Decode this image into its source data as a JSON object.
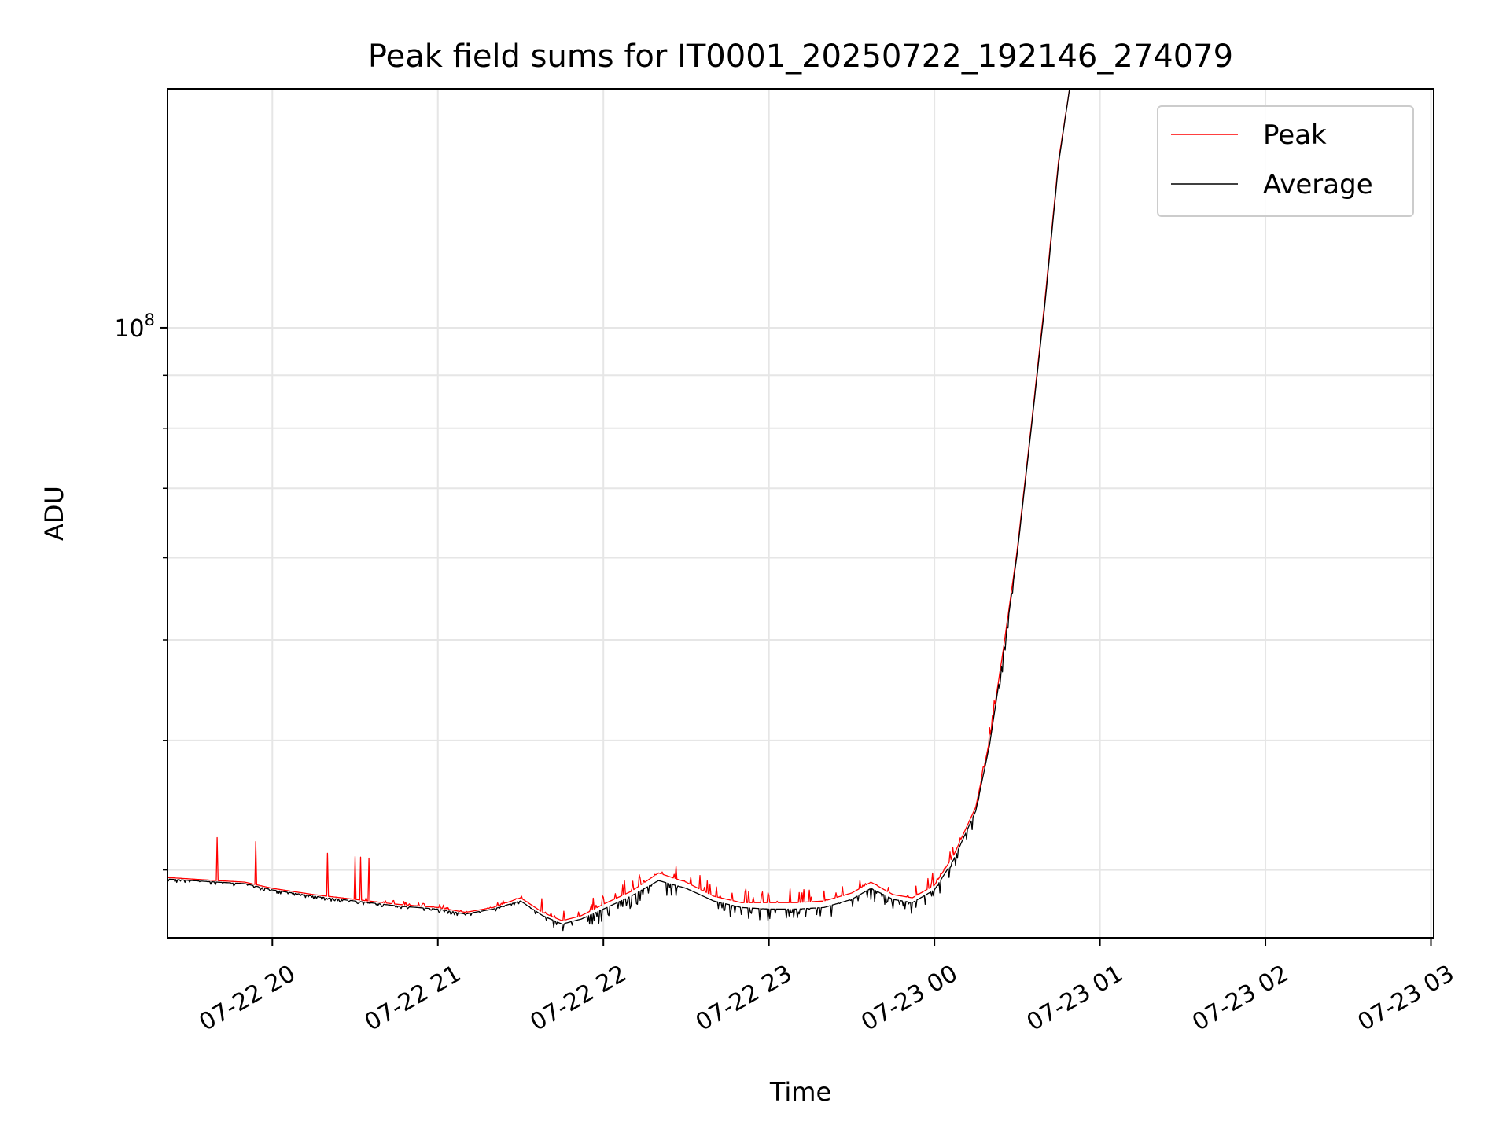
{
  "chart_data": {
    "type": "line",
    "title": "Peak field sums for IT0001_20250722_192146_274079",
    "xlabel": "Time",
    "ylabel": "ADU",
    "yscale": "log",
    "grid": true,
    "legend_position": "top-right",
    "xlim": [
      "2025-07-22 19:22",
      "2025-07-23 03:01"
    ],
    "ylim": [
      25800000,
      170000000
    ],
    "x_ticks": [
      "2025-07-22 20:00",
      "2025-07-22 21:00",
      "2025-07-22 22:00",
      "2025-07-22 23:00",
      "2025-07-23 00:00",
      "2025-07-23 01:00",
      "2025-07-23 02:00",
      "2025-07-23 03:00"
    ],
    "x_tick_labels": [
      "07-22 20",
      "07-22 21",
      "07-22 22",
      "07-22 23",
      "07-23 00",
      "07-23 01",
      "07-23 02",
      "07-23 03"
    ],
    "y_major_ticks": [
      100000000
    ],
    "y_major_tick_labels": [
      "10",
      "8"
    ],
    "y_minor_ticks": [
      30000000,
      40000000,
      50000000,
      60000000,
      70000000,
      80000000,
      90000000,
      200000000
    ],
    "series": [
      {
        "name": "Peak",
        "color": "#ff0000",
        "x": [
          "2025-07-22 19:22",
          "2025-07-22 19:40",
          "2025-07-22 19:50",
          "2025-07-22 20:00",
          "2025-07-22 20:15",
          "2025-07-22 20:30",
          "2025-07-22 20:45",
          "2025-07-22 21:00",
          "2025-07-22 21:10",
          "2025-07-22 21:20",
          "2025-07-22 21:30",
          "2025-07-22 21:38",
          "2025-07-22 21:45",
          "2025-07-22 21:52",
          "2025-07-22 22:00",
          "2025-07-22 22:10",
          "2025-07-22 22:20",
          "2025-07-22 22:30",
          "2025-07-22 22:40",
          "2025-07-22 22:50",
          "2025-07-22 23:00",
          "2025-07-22 23:10",
          "2025-07-22 23:20",
          "2025-07-22 23:30",
          "2025-07-22 23:37",
          "2025-07-22 23:45",
          "2025-07-22 23:52",
          "2025-07-23 00:00",
          "2025-07-23 00:07",
          "2025-07-23 00:15",
          "2025-07-23 00:20",
          "2025-07-23 00:25",
          "2025-07-23 00:30",
          "2025-07-23 00:35",
          "2025-07-23 00:40",
          "2025-07-23 00:45",
          "2025-07-23 00:49"
        ],
        "y": [
          29500000,
          29300000,
          29200000,
          28800000,
          28400000,
          28100000,
          27800000,
          27600000,
          27300000,
          27600000,
          28200000,
          27300000,
          26800000,
          27100000,
          27800000,
          28600000,
          29800000,
          29200000,
          28300000,
          27900000,
          27900000,
          27900000,
          28000000,
          28500000,
          29200000,
          28400000,
          28200000,
          29000000,
          31000000,
          34500000,
          40000000,
          49000000,
          61000000,
          80000000,
          106000000,
          145000000,
          170000000
        ]
      },
      {
        "name": "Average",
        "color": "#000000",
        "x": [
          "2025-07-22 19:22",
          "2025-07-22 19:40",
          "2025-07-22 19:50",
          "2025-07-22 20:00",
          "2025-07-22 20:15",
          "2025-07-22 20:30",
          "2025-07-22 20:45",
          "2025-07-22 21:00",
          "2025-07-22 21:10",
          "2025-07-22 21:20",
          "2025-07-22 21:30",
          "2025-07-22 21:38",
          "2025-07-22 21:45",
          "2025-07-22 21:52",
          "2025-07-22 22:00",
          "2025-07-22 22:10",
          "2025-07-22 22:20",
          "2025-07-22 22:30",
          "2025-07-22 22:40",
          "2025-07-22 22:50",
          "2025-07-22 23:00",
          "2025-07-22 23:10",
          "2025-07-22 23:20",
          "2025-07-22 23:30",
          "2025-07-22 23:37",
          "2025-07-22 23:45",
          "2025-07-22 23:52",
          "2025-07-23 00:00",
          "2025-07-23 00:07",
          "2025-07-23 00:15",
          "2025-07-23 00:20",
          "2025-07-23 00:25",
          "2025-07-23 00:30",
          "2025-07-23 00:35",
          "2025-07-23 00:40",
          "2025-07-23 00:45",
          "2025-07-23 00:49"
        ],
        "y": [
          29400000,
          29200000,
          29100000,
          28700000,
          28300000,
          28000000,
          27700000,
          27500000,
          27200000,
          27500000,
          28000000,
          27100000,
          26600000,
          26900000,
          27500000,
          28300000,
          29300000,
          28800000,
          28000000,
          27600000,
          27500000,
          27500000,
          27600000,
          28100000,
          28800000,
          28100000,
          27900000,
          28700000,
          30700000,
          34200000,
          39600000,
          48500000,
          60500000,
          79500000,
          105000000,
          144000000,
          170000000
        ]
      }
    ],
    "y_tick_text": {
      "base": "10",
      "exponent": "8"
    }
  }
}
